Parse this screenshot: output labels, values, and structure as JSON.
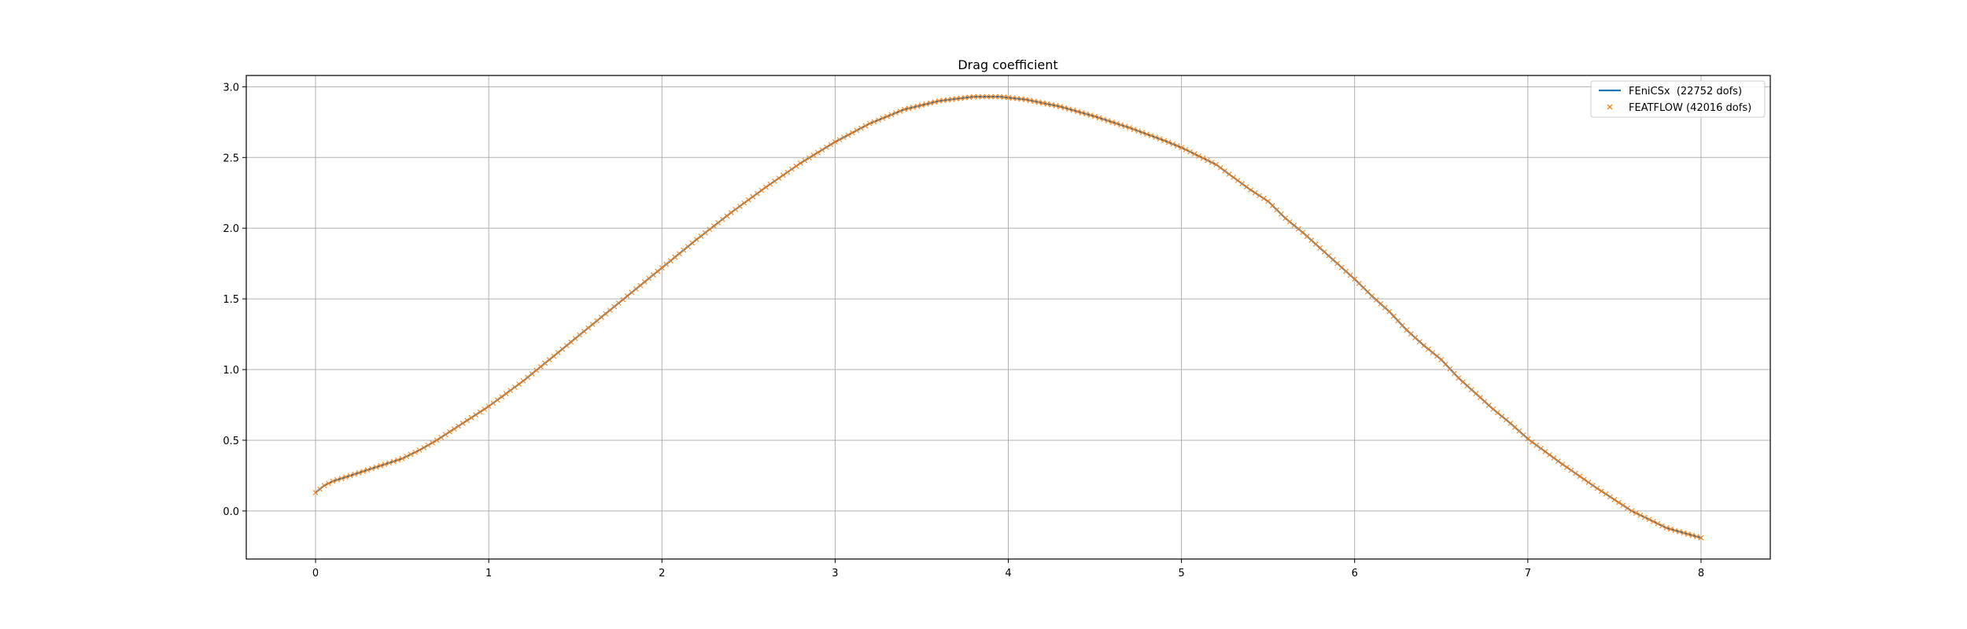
{
  "chart_data": {
    "type": "line",
    "title": "Drag coefficient",
    "xlabel": "",
    "ylabel": "",
    "xlim": [
      -0.4,
      8.4
    ],
    "ylim": [
      -0.34,
      3.08
    ],
    "xticks": [
      0,
      1,
      2,
      3,
      4,
      5,
      6,
      7,
      8
    ],
    "yticks": [
      0.0,
      0.5,
      1.0,
      1.5,
      2.0,
      2.5,
      3.0
    ],
    "xtick_labels": [
      "0",
      "1",
      "2",
      "3",
      "4",
      "5",
      "6",
      "7",
      "8"
    ],
    "ytick_labels": [
      "0.0",
      "0.5",
      "1.0",
      "1.5",
      "2.0",
      "2.5",
      "3.0"
    ],
    "grid": true,
    "legend_position": "top-right",
    "series": [
      {
        "name": "FEniCSx  (22752 dofs)",
        "style": "line",
        "color": "#1f77b4",
        "x": [
          0,
          0.05,
          0.1,
          0.2,
          0.3,
          0.4,
          0.5,
          0.6,
          0.7,
          0.8,
          0.9,
          1.0,
          1.2,
          1.4,
          1.6,
          1.8,
          2.0,
          2.2,
          2.4,
          2.6,
          2.8,
          3.0,
          3.2,
          3.4,
          3.6,
          3.8,
          3.95,
          4.1,
          4.3,
          4.5,
          4.7,
          4.9,
          5.0,
          5.1,
          5.2,
          5.3,
          5.4,
          5.5,
          5.6,
          5.7,
          5.8,
          5.9,
          6.0,
          6.1,
          6.2,
          6.3,
          6.4,
          6.5,
          6.6,
          6.7,
          6.8,
          6.9,
          7.0,
          7.2,
          7.4,
          7.6,
          7.8,
          8.0
        ],
        "y": [
          0.13,
          0.18,
          0.21,
          0.25,
          0.29,
          0.33,
          0.37,
          0.43,
          0.5,
          0.58,
          0.66,
          0.74,
          0.92,
          1.12,
          1.32,
          1.52,
          1.72,
          1.92,
          2.11,
          2.29,
          2.46,
          2.61,
          2.74,
          2.84,
          2.9,
          2.93,
          2.93,
          2.91,
          2.86,
          2.79,
          2.71,
          2.62,
          2.57,
          2.51,
          2.45,
          2.36,
          2.27,
          2.19,
          2.07,
          1.97,
          1.86,
          1.75,
          1.64,
          1.52,
          1.41,
          1.28,
          1.17,
          1.07,
          0.94,
          0.83,
          0.72,
          0.62,
          0.51,
          0.33,
          0.16,
          0.0,
          -0.12,
          -0.19
        ]
      },
      {
        "name": "FEATFLOW (42016 dofs)",
        "style": "x-markers",
        "color": "#ff7f0e",
        "x": [
          0,
          0.05,
          0.1,
          0.2,
          0.3,
          0.4,
          0.5,
          0.6,
          0.7,
          0.8,
          0.9,
          1.0,
          1.2,
          1.4,
          1.6,
          1.8,
          2.0,
          2.2,
          2.4,
          2.6,
          2.8,
          3.0,
          3.2,
          3.4,
          3.6,
          3.8,
          3.95,
          4.1,
          4.3,
          4.5,
          4.7,
          4.9,
          5.0,
          5.1,
          5.2,
          5.3,
          5.4,
          5.5,
          5.6,
          5.7,
          5.8,
          5.9,
          6.0,
          6.1,
          6.2,
          6.3,
          6.4,
          6.5,
          6.6,
          6.7,
          6.8,
          6.9,
          7.0,
          7.2,
          7.4,
          7.6,
          7.8,
          8.0
        ],
        "y": [
          0.13,
          0.18,
          0.21,
          0.25,
          0.29,
          0.33,
          0.37,
          0.43,
          0.5,
          0.58,
          0.66,
          0.74,
          0.92,
          1.12,
          1.32,
          1.52,
          1.72,
          1.92,
          2.11,
          2.29,
          2.46,
          2.61,
          2.74,
          2.84,
          2.9,
          2.93,
          2.93,
          2.91,
          2.86,
          2.79,
          2.71,
          2.62,
          2.57,
          2.51,
          2.45,
          2.36,
          2.27,
          2.19,
          2.07,
          1.97,
          1.86,
          1.75,
          1.64,
          1.52,
          1.41,
          1.28,
          1.17,
          1.07,
          0.94,
          0.83,
          0.72,
          0.62,
          0.51,
          0.33,
          0.16,
          0.0,
          -0.12,
          -0.19
        ]
      }
    ]
  }
}
